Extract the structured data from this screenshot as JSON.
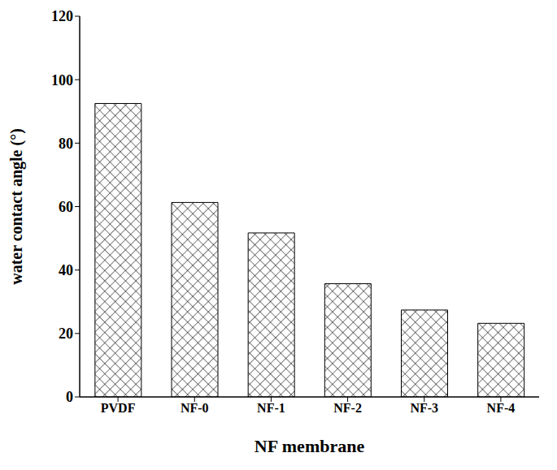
{
  "chart_data": {
    "type": "bar",
    "categories": [
      "PVDF",
      "NF-0",
      "NF-1",
      "NF-2",
      "NF-3",
      "NF-4"
    ],
    "values": [
      92.5,
      61.3,
      51.7,
      35.7,
      27.4,
      23.2
    ],
    "color": "#000000",
    "xlabel": "NF membrane",
    "ylabel": "water contact angle (°)",
    "ylim": [
      0,
      120
    ],
    "yticks": [
      0,
      20,
      40,
      60,
      80,
      100,
      120
    ],
    "grid": false
  }
}
